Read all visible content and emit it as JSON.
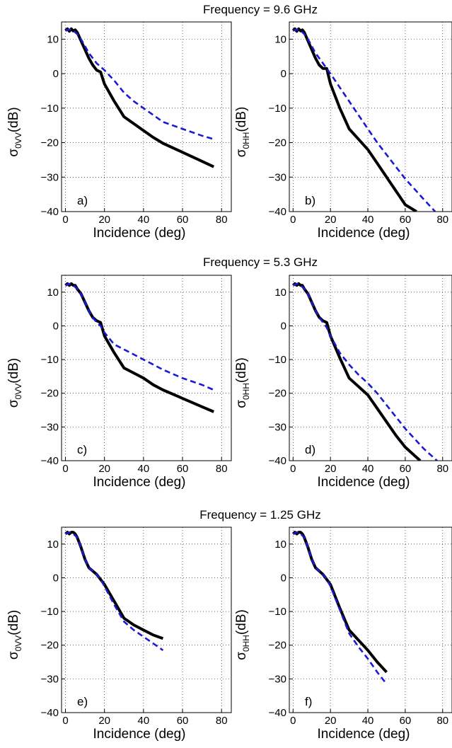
{
  "row_titles": [
    "Frequency = 9.6 GHz",
    "Frequency = 5.3 GHz",
    "Frequency = 1.25 GHz"
  ],
  "colors": {
    "series_1": "#000000",
    "series_2": "#1a1ad6"
  },
  "chart_data": [
    {
      "type": "line",
      "label": "a)",
      "xlabel": "Incidence (deg)",
      "ylabel_main": "σ",
      "ylabel_sub": "0VV",
      "ylabel_unit": "(dB)",
      "xlim": [
        -2,
        85
      ],
      "ylim": [
        -40,
        15
      ],
      "xticks": [
        0,
        20,
        40,
        60,
        80
      ],
      "yticks": [
        10,
        0,
        -10,
        -20,
        -30,
        -40
      ],
      "xtick_labels": [
        "0",
        "20",
        "40",
        "60",
        "80"
      ],
      "ytick_labels": [
        "10",
        "0",
        "−10",
        "−20",
        "−30",
        "−40"
      ],
      "grid": true,
      "series": [
        {
          "style": "solid",
          "x": [
            0,
            1,
            2,
            3,
            4,
            5,
            6,
            8,
            10,
            12,
            14,
            16,
            18,
            20,
            25,
            30,
            35,
            40,
            45,
            50,
            60,
            70,
            76
          ],
          "y": [
            12.5,
            13,
            12.3,
            13,
            12.4,
            12.7,
            12,
            9.5,
            7,
            4.5,
            2.5,
            1,
            0.5,
            -3,
            -8,
            -12.5,
            -14.5,
            -16.5,
            -18.5,
            -20.2,
            -22.8,
            -25.4,
            -27
          ]
        },
        {
          "style": "dashed",
          "x": [
            0,
            2,
            4,
            6,
            8,
            10,
            12,
            14,
            16,
            18,
            20,
            25,
            30,
            35,
            40,
            45,
            50,
            60,
            70,
            76
          ],
          "y": [
            12.5,
            12.8,
            12.5,
            11.5,
            10,
            8,
            6,
            4.5,
            3,
            2,
            1,
            -2,
            -5.5,
            -8,
            -10,
            -12,
            -14,
            -16,
            -18,
            -19
          ]
        }
      ]
    },
    {
      "type": "line",
      "label": "b)",
      "xlabel": "Incidence (deg)",
      "ylabel_main": "σ",
      "ylabel_sub": "0HH",
      "ylabel_unit": "(dB)",
      "xlim": [
        -2,
        85
      ],
      "ylim": [
        -40,
        15
      ],
      "xticks": [
        0,
        20,
        40,
        60,
        80
      ],
      "yticks": [
        10,
        0,
        -10,
        -20,
        -30,
        -40
      ],
      "xtick_labels": [
        "0",
        "20",
        "40",
        "60",
        "80"
      ],
      "ytick_labels": [
        "10",
        "0",
        "−10",
        "−20",
        "−30",
        "−40"
      ],
      "grid": true,
      "series": [
        {
          "style": "solid",
          "x": [
            0,
            1,
            2,
            3,
            4,
            5,
            6,
            8,
            10,
            12,
            14,
            16,
            18,
            20,
            25,
            30,
            35,
            40,
            45,
            50,
            55,
            60,
            66
          ],
          "y": [
            12.5,
            13,
            12.3,
            13,
            12.4,
            12.7,
            12,
            9.5,
            7,
            4.5,
            2.5,
            1.5,
            1.5,
            -3,
            -10,
            -16,
            -19,
            -22,
            -26,
            -30,
            -34,
            -38,
            -40
          ]
        },
        {
          "style": "dashed",
          "x": [
            0,
            2,
            4,
            6,
            8,
            10,
            12,
            14,
            16,
            18,
            20,
            25,
            30,
            35,
            40,
            45,
            50,
            55,
            60,
            65,
            70,
            76
          ],
          "y": [
            12.5,
            12.8,
            12.5,
            11.5,
            10,
            8,
            6,
            4.5,
            3,
            1.5,
            0,
            -4,
            -8,
            -12,
            -16,
            -20,
            -23.5,
            -27,
            -30.5,
            -33.5,
            -36.5,
            -40
          ]
        }
      ]
    },
    {
      "type": "line",
      "label": "c)",
      "xlabel": "Incidence (deg)",
      "ylabel_main": "σ",
      "ylabel_sub": "0VV",
      "ylabel_unit": "(dB)",
      "xlim": [
        -2,
        85
      ],
      "ylim": [
        -40,
        15
      ],
      "xticks": [
        0,
        20,
        40,
        60,
        80
      ],
      "yticks": [
        10,
        0,
        -10,
        -20,
        -30,
        -40
      ],
      "xtick_labels": [
        "0",
        "20",
        "40",
        "60",
        "80"
      ],
      "ytick_labels": [
        "10",
        "0",
        "−10",
        "−20",
        "−30",
        "−40"
      ],
      "grid": true,
      "series": [
        {
          "style": "solid",
          "x": [
            0,
            1,
            2,
            3,
            4,
            5,
            6,
            8,
            10,
            12,
            14,
            16,
            18,
            20,
            25,
            30,
            35,
            40,
            45,
            50,
            60,
            70,
            76
          ],
          "y": [
            12,
            12.5,
            12,
            12.5,
            12,
            12,
            11,
            9.5,
            7,
            4.5,
            2.5,
            1.5,
            1,
            -3,
            -8,
            -12.5,
            -14,
            -15.5,
            -17.5,
            -19,
            -21.5,
            -24,
            -25.5
          ]
        },
        {
          "style": "dashed",
          "x": [
            0,
            2,
            4,
            6,
            8,
            10,
            12,
            14,
            16,
            18,
            20,
            25,
            30,
            35,
            40,
            45,
            50,
            60,
            70,
            76
          ],
          "y": [
            12,
            12.5,
            12,
            11,
            9.5,
            7,
            4.5,
            2.5,
            1,
            0,
            -2,
            -5.5,
            -7,
            -8.5,
            -10,
            -11.5,
            -13,
            -15.5,
            -17.5,
            -19
          ]
        }
      ]
    },
    {
      "type": "line",
      "label": "d)",
      "xlabel": "Incidence (deg)",
      "ylabel_main": "σ",
      "ylabel_sub": "0HH",
      "ylabel_unit": "(dB)",
      "xlim": [
        -2,
        85
      ],
      "ylim": [
        -40,
        15
      ],
      "xticks": [
        0,
        20,
        40,
        60,
        80
      ],
      "yticks": [
        10,
        0,
        -10,
        -20,
        -30,
        -40
      ],
      "xtick_labels": [
        "0",
        "20",
        "40",
        "60",
        "80"
      ],
      "ytick_labels": [
        "10",
        "0",
        "−10",
        "−20",
        "−30",
        "−40"
      ],
      "grid": true,
      "series": [
        {
          "style": "solid",
          "x": [
            0,
            1,
            2,
            3,
            4,
            5,
            6,
            8,
            10,
            12,
            14,
            16,
            18,
            20,
            25,
            30,
            35,
            40,
            45,
            50,
            55,
            60,
            68
          ],
          "y": [
            12,
            12.5,
            12,
            12.5,
            12,
            12,
            11,
            9.5,
            7,
            4.5,
            2.5,
            1.5,
            1,
            -3,
            -9.5,
            -15.5,
            -18,
            -20.5,
            -24.5,
            -28.5,
            -32.5,
            -36,
            -40
          ]
        },
        {
          "style": "dashed",
          "x": [
            0,
            2,
            4,
            6,
            8,
            10,
            12,
            14,
            16,
            18,
            20,
            25,
            30,
            35,
            40,
            45,
            50,
            55,
            60,
            65,
            70,
            77
          ],
          "y": [
            12,
            12.5,
            12,
            11,
            9.5,
            7,
            4.5,
            2.5,
            1,
            -0.5,
            -3,
            -8,
            -11.5,
            -14.5,
            -17,
            -20,
            -23.5,
            -27,
            -30.5,
            -33.5,
            -36.5,
            -40
          ]
        }
      ]
    },
    {
      "type": "line",
      "label": "e)",
      "xlabel": "Incidence (deg)",
      "ylabel_main": "σ",
      "ylabel_sub": "0VV",
      "ylabel_unit": "(dB)",
      "xlim": [
        -2,
        85
      ],
      "ylim": [
        -40,
        15
      ],
      "xticks": [
        0,
        20,
        40,
        60,
        80
      ],
      "yticks": [
        10,
        0,
        -10,
        -20,
        -30,
        -40
      ],
      "xtick_labels": [
        "0",
        "20",
        "40",
        "60",
        "80"
      ],
      "ytick_labels": [
        "10",
        "0",
        "−10",
        "−20",
        "−30",
        "−40"
      ],
      "grid": true,
      "series": [
        {
          "style": "solid",
          "x": [
            0,
            1,
            2,
            3,
            4,
            5,
            6,
            8,
            10,
            12,
            14,
            16,
            18,
            20,
            25,
            30,
            35,
            40,
            45,
            50
          ],
          "y": [
            13,
            13.5,
            13,
            13.5,
            13.5,
            13,
            12,
            9,
            5.5,
            3,
            2,
            1,
            -0.5,
            -2,
            -7,
            -12,
            -14,
            -15.5,
            -17,
            -18
          ]
        },
        {
          "style": "dashed",
          "x": [
            0,
            2,
            4,
            6,
            8,
            10,
            12,
            14,
            16,
            18,
            20,
            25,
            30,
            35,
            40,
            45,
            50
          ],
          "y": [
            13,
            13.5,
            13,
            12,
            9,
            5.5,
            3,
            2,
            1,
            -0.5,
            -2.5,
            -8,
            -13,
            -15.5,
            -17.5,
            -19.5,
            -21.5
          ]
        }
      ]
    },
    {
      "type": "line",
      "label": "f)",
      "xlabel": "Incidence (deg)",
      "ylabel_main": "σ",
      "ylabel_sub": "0HH",
      "ylabel_unit": "(dB)",
      "xlim": [
        -2,
        85
      ],
      "ylim": [
        -40,
        15
      ],
      "xticks": [
        0,
        20,
        40,
        60,
        80
      ],
      "yticks": [
        10,
        0,
        -10,
        -20,
        -30,
        -40
      ],
      "xtick_labels": [
        "0",
        "20",
        "40",
        "60",
        "80"
      ],
      "ytick_labels": [
        "10",
        "0",
        "−10",
        "−20",
        "−30",
        "−40"
      ],
      "grid": true,
      "series": [
        {
          "style": "solid",
          "x": [
            0,
            1,
            2,
            3,
            4,
            5,
            6,
            8,
            10,
            12,
            14,
            16,
            18,
            20,
            25,
            30,
            35,
            40,
            45,
            50
          ],
          "y": [
            13,
            13.5,
            13,
            13.5,
            13.5,
            13,
            12,
            9,
            5.5,
            3,
            2,
            1,
            -0.5,
            -2,
            -9,
            -15.5,
            -18.5,
            -21.5,
            -25,
            -28
          ]
        },
        {
          "style": "dashed",
          "x": [
            0,
            2,
            4,
            6,
            8,
            10,
            12,
            14,
            16,
            18,
            20,
            25,
            30,
            35,
            40,
            45,
            50
          ],
          "y": [
            13,
            13.5,
            13,
            12,
            9,
            5.5,
            3,
            2,
            1,
            -0.5,
            -2.5,
            -9.5,
            -16.5,
            -20.5,
            -24,
            -28,
            -31.5
          ]
        }
      ]
    }
  ]
}
